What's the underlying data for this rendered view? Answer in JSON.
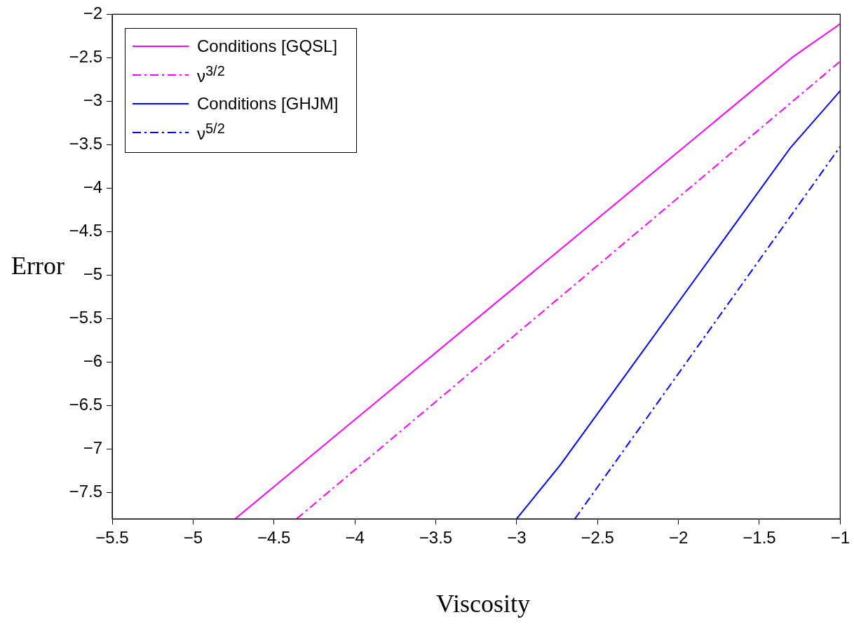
{
  "chart_data": {
    "type": "line",
    "xlabel": "Viscosity",
    "ylabel": "Error",
    "xlim": [
      -5.5,
      -1
    ],
    "ylim": [
      -7.8,
      -2
    ],
    "xticks": [
      -5.5,
      -5,
      -4.5,
      -4,
      -3.5,
      -3,
      -2.5,
      -2,
      -1.5,
      -1
    ],
    "yticks": [
      -7.5,
      -7,
      -6.5,
      -6,
      -5.5,
      -5,
      -4.5,
      -4,
      -3.5,
      -3,
      -2.5,
      -2
    ],
    "grid": false,
    "legend": "top left",
    "marker": "none",
    "series": [
      {
        "name": "Conditions [GQSL]",
        "color": "#ff00ff",
        "line_style": "solid",
        "x": [
          -4.74,
          -1.3,
          -1
        ],
        "values": [
          -7.8,
          -2.5,
          -2.11
        ]
      },
      {
        "name": "ν$^{3/2}$",
        "color": "#ff00ff",
        "line_style": "dashed",
        "x": [
          -4.36,
          -1
        ],
        "values": [
          -7.8,
          -2.54
        ]
      },
      {
        "name": "Conditions [GHJM]",
        "color": "#0000ff",
        "line_style": "solid",
        "x": [
          -3.0,
          -2.73,
          -1.31,
          -1
        ],
        "values": [
          -7.8,
          -7.18,
          -3.54,
          -2.88
        ]
      },
      {
        "name": "ν$^{5/2}$",
        "color": "#0000ff",
        "line_style": "dashed",
        "x": [
          -2.64,
          -1
        ],
        "values": [
          -7.8,
          -3.52
        ]
      }
    ]
  }
}
